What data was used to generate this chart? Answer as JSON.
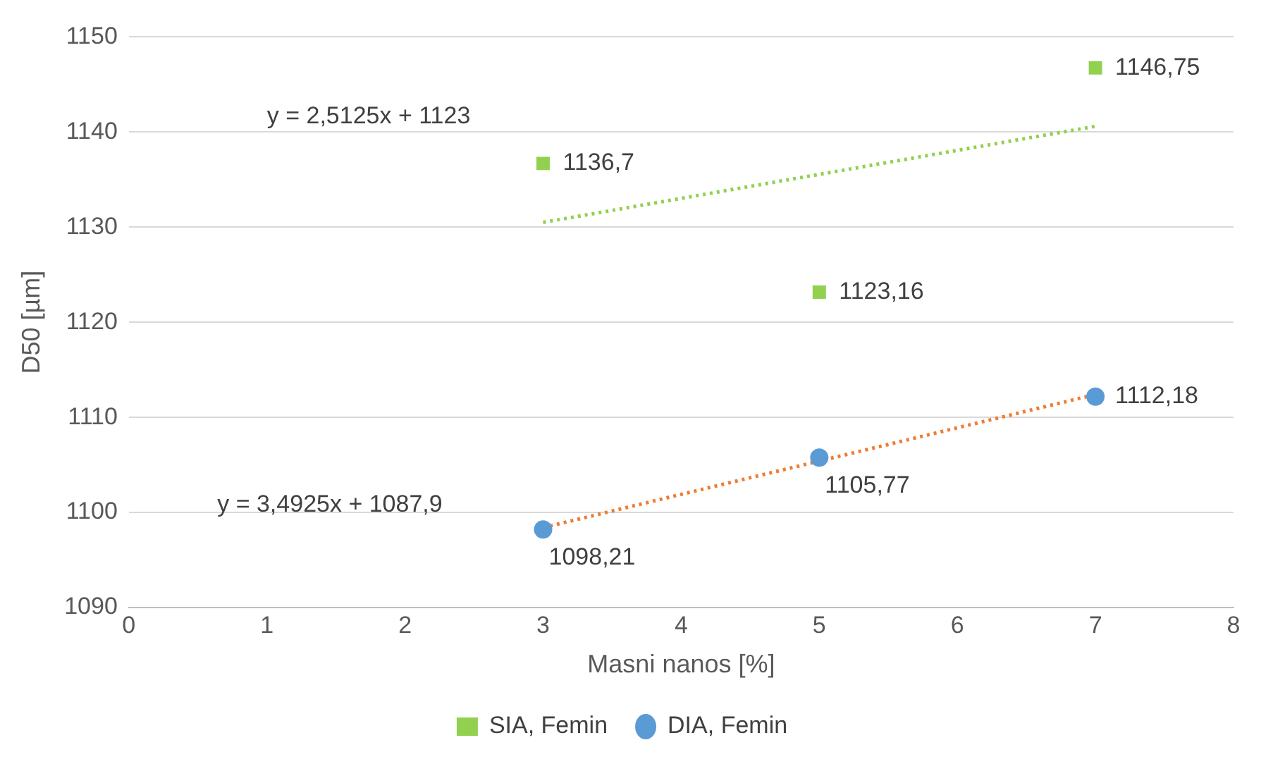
{
  "chart_data": {
    "type": "scatter",
    "xlabel": "Masni nanos [%]",
    "ylabel": "D50 [µm]",
    "xlim": [
      0,
      8
    ],
    "xticks": [
      0,
      1,
      2,
      3,
      4,
      5,
      6,
      7,
      8
    ],
    "ylim": [
      1090,
      1150
    ],
    "yticks": [
      1090,
      1100,
      1110,
      1120,
      1130,
      1140,
      1150
    ],
    "grid": "y",
    "legend": "bottom",
    "series": [
      {
        "name": "SIA, Femin",
        "marker": "square",
        "color": "#92d050",
        "x": [
          3,
          5,
          7
        ],
        "values": [
          1136.7,
          1123.16,
          1146.75
        ],
        "value_labels": [
          "1136,7",
          "1123,16",
          "1146,75"
        ]
      },
      {
        "name": "DIA, Femin",
        "marker": "circle",
        "color": "#5b9bd5",
        "x": [
          3,
          5,
          7
        ],
        "values": [
          1098.21,
          1105.77,
          1112.18
        ],
        "value_labels": [
          "1098,21",
          "1105,77",
          "1112,18"
        ]
      },
      {
        "type": "line",
        "line_style": "dotted",
        "marker": "none",
        "color": "#92d050",
        "x": [
          3,
          7
        ],
        "values": [
          1130.5,
          1140.6
        ]
      },
      {
        "type": "line",
        "line_style": "dotted",
        "marker": "none",
        "color": "#ed7d31",
        "x": [
          3,
          7
        ],
        "values": [
          1098.4,
          1112.4
        ]
      }
    ],
    "annotations": [
      "y = 2,5125x + 1123",
      "y = 3,4925x + 1087,9"
    ]
  }
}
